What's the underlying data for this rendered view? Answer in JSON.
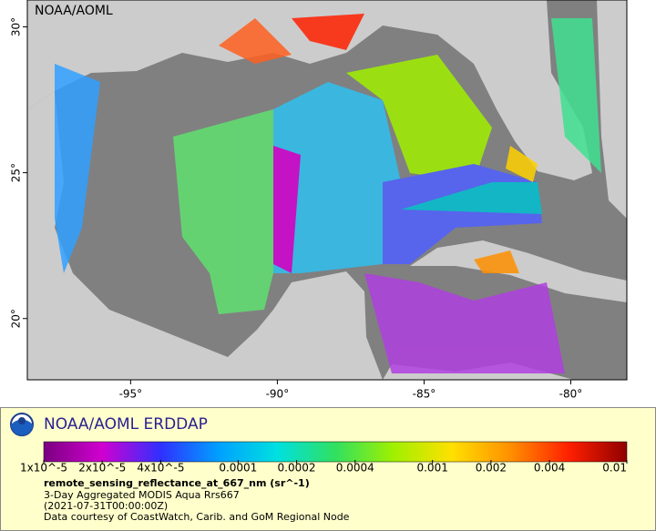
{
  "map": {
    "watermark": "NOAA/AOML",
    "xlim": [
      -98.52,
      -78.09
    ],
    "ylim": [
      17.9,
      30.92
    ],
    "xticks": [
      {
        "value": -95,
        "label": "-95°"
      },
      {
        "value": -90,
        "label": "-90°"
      },
      {
        "value": -85,
        "label": "-85°"
      },
      {
        "value": -80,
        "label": "-80°"
      }
    ],
    "yticks": [
      {
        "value": 20,
        "label": "20°"
      },
      {
        "value": 25,
        "label": "25°"
      },
      {
        "value": 30,
        "label": "30°"
      }
    ]
  },
  "legend": {
    "title": "NOAA/AOML ERDDAP",
    "colorbar": {
      "scale": "log",
      "lim": [
        1e-05,
        0.01
      ],
      "colors": [
        "#7a0080",
        "#d000d0",
        "#3030ff",
        "#00a0ff",
        "#00e0e0",
        "#30e060",
        "#a0f000",
        "#ffe000",
        "#ff9000",
        "#ff2000",
        "#900000"
      ],
      "ticks": [
        {
          "value": 1e-05,
          "label": "1x10^-5"
        },
        {
          "value": 2e-05,
          "label": "2x10^-5"
        },
        {
          "value": 4e-05,
          "label": "4x10^-5"
        },
        {
          "value": 0.0001,
          "label": "0.0001"
        },
        {
          "value": 0.0002,
          "label": "0.0002"
        },
        {
          "value": 0.0004,
          "label": "0.0004"
        },
        {
          "value": 0.001,
          "label": "0.001"
        },
        {
          "value": 0.002,
          "label": "0.002"
        },
        {
          "value": 0.004,
          "label": "0.004"
        },
        {
          "value": 0.01,
          "label": "0.01"
        }
      ]
    },
    "variable": "remote_sensing_reflectance_at_667_nm (sr^-1)",
    "lines": [
      "3-Day Aggregated MODIS Aqua Rrs667",
      "(2021-07-31T00:00:00Z)",
      "Data courtesy of CoastWatch, Carib. and GoM Regional Node"
    ]
  }
}
